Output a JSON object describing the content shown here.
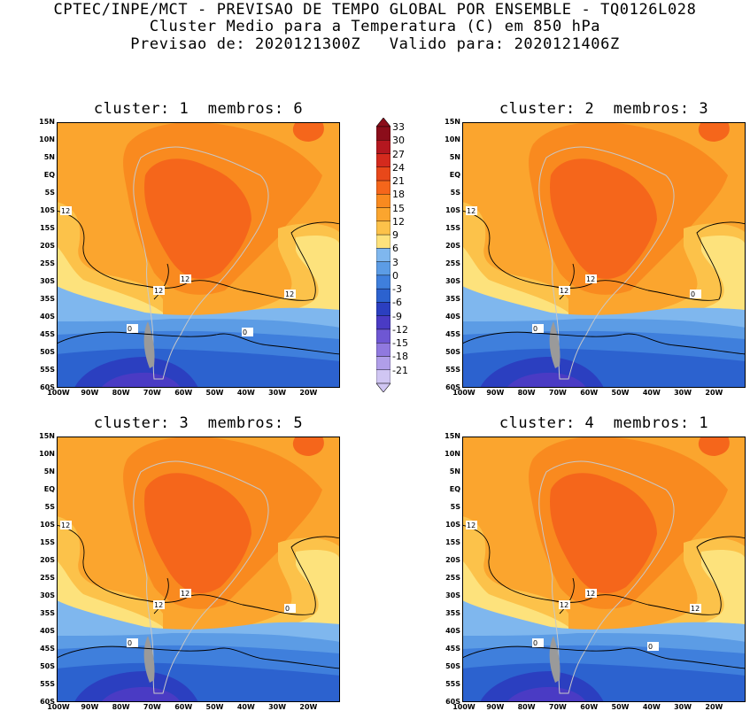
{
  "header": {
    "line1": "CPTEC/INPE/MCT - PREVISAO DE TEMPO GLOBAL POR ENSEMBLE - TQ0126L028",
    "line2": "Cluster Medio para a Temperatura (C) em 850 hPa",
    "line3": "Previsao de: 2020121300Z   Valido para: 2020121406Z"
  },
  "axes": {
    "lat_labels": [
      "15N",
      "10N",
      "5N",
      "EQ",
      "5S",
      "10S",
      "15S",
      "20S",
      "25S",
      "30S",
      "35S",
      "40S",
      "45S",
      "50S",
      "55S",
      "60S"
    ],
    "lon_labels": [
      "100W",
      "90W",
      "80W",
      "70W",
      "60W",
      "50W",
      "40W",
      "30W",
      "20W"
    ]
  },
  "colorbar": {
    "labels": [
      "33",
      "30",
      "27",
      "24",
      "21",
      "18",
      "15",
      "12",
      "9",
      "6",
      "3",
      "0",
      "-3",
      "-6",
      "-9",
      "-12",
      "-15",
      "-18",
      "-21"
    ],
    "colors": [
      "#8b0d1a",
      "#b4171f",
      "#d42a1d",
      "#e8481a",
      "#f5661b",
      "#f98a1f",
      "#fba52e",
      "#fcc24a",
      "#fde27c",
      "#7fb7ee",
      "#5c9ce5",
      "#3f7fdc",
      "#2c62cf",
      "#2b3fc0",
      "#4a3bc4",
      "#6e57d3",
      "#9079df",
      "#b09ee9",
      "#d0c6f3"
    ]
  },
  "panels": [
    {
      "id": "1",
      "title": "cluster: 1  membros: 6",
      "contour_labels": [
        "12",
        "12",
        "12",
        "12",
        "0",
        "0"
      ]
    },
    {
      "id": "2",
      "title": "cluster: 2  membros: 3",
      "contour_labels": [
        "12",
        "12",
        "12",
        "0",
        "0"
      ]
    },
    {
      "id": "3",
      "title": "cluster: 3  membros: 5",
      "contour_labels": [
        "12",
        "12",
        "12",
        "0",
        "0"
      ]
    },
    {
      "id": "4",
      "title": "cluster: 4  membros: 1",
      "contour_labels": [
        "12",
        "12",
        "12",
        "12",
        "0",
        "0"
      ]
    }
  ]
}
